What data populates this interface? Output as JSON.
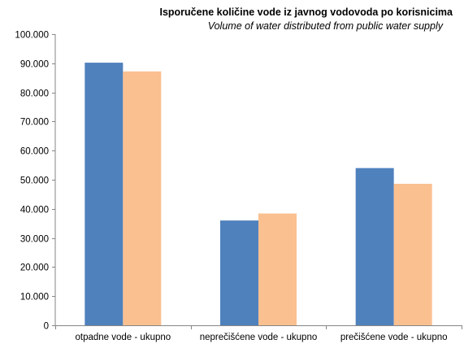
{
  "chart_data": {
    "type": "bar",
    "title": "Isporučene količine vode iz javnog vodovoda po korisnicima",
    "subtitle": "Volume of water distributed from public water supply",
    "xlabel": "",
    "ylabel": "",
    "ylim": [
      0,
      100000
    ],
    "yticks": [
      "0",
      "10.000",
      "20.000",
      "30.000",
      "40.000",
      "50.000",
      "60.000",
      "70.000",
      "80.000",
      "90.000",
      "100.000"
    ],
    "grid": false,
    "legend": "none",
    "categories": [
      "otpadne vode - ukupno",
      "neprečišćene vode - ukupno",
      "prečišćene vode - ukupno"
    ],
    "series": [
      {
        "color": "#4f81bd",
        "values": [
          90200,
          36000,
          54000
        ]
      },
      {
        "color": "#fac090",
        "values": [
          87200,
          38400,
          48600
        ]
      }
    ]
  }
}
